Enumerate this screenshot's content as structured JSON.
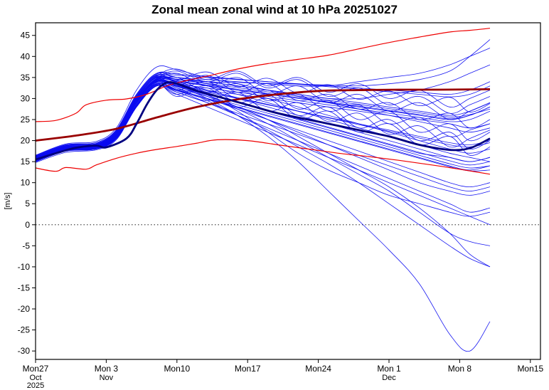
{
  "title": "Zonal mean zonal wind at 10 hPa 20251027",
  "chart_data": {
    "type": "line",
    "title": "Zonal mean zonal wind at 10 hPa 20251027",
    "xlabel": "",
    "ylabel": "[m/s]",
    "ylim": [
      -32,
      48
    ],
    "yticks": [
      -30,
      -25,
      -20,
      -15,
      -10,
      -5,
      0,
      5,
      10,
      15,
      20,
      25,
      30,
      35,
      40,
      45
    ],
    "zero_line": 0,
    "grid": false,
    "legend": "none",
    "x_axis": {
      "unit": "days since 2025-10-27",
      "range": [
        0,
        50
      ],
      "ticks": [
        {
          "day": 0,
          "label": "Mon27",
          "sub": [
            "Oct",
            "2025"
          ]
        },
        {
          "day": 7,
          "label": "Mon 3",
          "sub": [
            "Nov"
          ]
        },
        {
          "day": 14,
          "label": "Mon10",
          "sub": []
        },
        {
          "day": 21,
          "label": "Mon17",
          "sub": []
        },
        {
          "day": 28,
          "label": "Mon24",
          "sub": []
        },
        {
          "day": 35,
          "label": "Mon 1",
          "sub": [
            "Dec"
          ]
        },
        {
          "day": 42,
          "label": "Mon 8",
          "sub": []
        },
        {
          "day": 49,
          "label": "Mon15",
          "sub": []
        }
      ]
    },
    "colors": {
      "member": "#0b0bf0",
      "ensemble_mean": "#000080",
      "climatology_mean": "#990000",
      "climatology_bounds": "#ee0000",
      "axis": "#000000"
    },
    "ensemble_mean": {
      "name": "ensemble mean",
      "days": [
        0,
        2,
        4,
        6,
        7,
        9,
        10,
        11,
        12,
        13,
        14,
        16,
        18,
        21,
        24,
        28,
        32,
        35,
        38,
        41,
        43,
        45
      ],
      "values": [
        15.5,
        17,
        18.3,
        18.8,
        18.4,
        20.5,
        24,
        28.5,
        32,
        33.8,
        33.5,
        31.8,
        30.5,
        28.5,
        26.5,
        24.5,
        22.5,
        21,
        19,
        17.8,
        18.2,
        20.5
      ]
    },
    "climatology_mean": {
      "name": "climatological mean",
      "days": [
        0,
        4,
        8,
        12,
        16,
        20,
        24,
        28,
        32,
        36,
        40,
        45
      ],
      "values": [
        20,
        21.2,
        22.8,
        25.5,
        28,
        29.8,
        31,
        31.8,
        32,
        32.1,
        32.1,
        32.2
      ]
    },
    "climatology_upper": {
      "name": "climatological upper bound",
      "days": [
        0,
        2,
        4,
        5,
        7,
        9,
        11,
        13,
        15,
        17,
        20,
        23,
        26,
        29,
        32,
        35,
        38,
        41,
        43,
        45
      ],
      "values": [
        24.5,
        24.8,
        26.5,
        28.5,
        29.6,
        29.9,
        31,
        33,
        34.3,
        35.3,
        37,
        38.3,
        39.3,
        40.3,
        41.8,
        43.3,
        44.6,
        45.8,
        46.2,
        46.7
      ]
    },
    "climatology_lower": {
      "name": "climatological lower bound",
      "days": [
        0,
        2,
        3,
        5,
        6,
        8,
        10,
        12,
        14,
        16,
        18,
        21,
        24,
        27,
        30,
        33,
        36,
        39,
        42,
        45
      ],
      "values": [
        13.5,
        12.7,
        13.6,
        13.2,
        14.2,
        15.8,
        17,
        17.9,
        18.6,
        19.4,
        20.2,
        20,
        19,
        18,
        17,
        16.2,
        15.3,
        14.3,
        13.2,
        12
      ]
    },
    "member_days": [
      0,
      3,
      6,
      8,
      10,
      12,
      14,
      17,
      20,
      23,
      26,
      29,
      32,
      35,
      38,
      41,
      43,
      45
    ],
    "ensemble_members": [
      [
        15.5,
        18,
        18.5,
        21,
        29,
        34,
        33,
        31,
        29,
        27,
        25,
        23,
        21,
        19,
        17,
        16,
        15,
        16
      ],
      [
        16,
        18.5,
        19,
        22,
        30,
        35,
        34,
        32,
        31,
        30,
        29,
        28,
        27,
        26,
        25,
        24,
        23,
        24
      ],
      [
        15,
        17.5,
        18,
        20.5,
        28,
        33,
        32,
        30,
        28,
        25,
        22,
        19,
        16,
        13,
        10,
        8,
        7,
        8
      ],
      [
        16.5,
        19,
        19.5,
        22.5,
        31,
        36,
        35,
        34,
        33,
        32,
        31,
        30,
        30,
        31,
        32,
        34,
        36,
        38
      ],
      [
        15.2,
        17.8,
        18.2,
        20.8,
        28.5,
        33.5,
        32,
        29,
        26,
        23,
        20,
        17,
        14,
        11,
        8,
        5,
        3,
        4
      ],
      [
        15.8,
        18.2,
        18.8,
        21.5,
        29.5,
        34.5,
        34,
        33,
        32,
        31,
        30,
        29,
        28,
        27,
        26,
        25,
        26,
        28
      ],
      [
        14.8,
        17.2,
        17.8,
        20.2,
        28,
        33,
        31,
        28,
        25,
        22,
        19,
        16,
        13,
        10,
        7,
        4,
        2,
        0
      ],
      [
        16.2,
        18.8,
        19.2,
        22,
        30.5,
        35.5,
        35,
        34,
        33,
        32,
        31,
        30,
        29,
        28,
        27,
        26,
        27,
        29
      ],
      [
        15.4,
        17.6,
        18.4,
        21,
        29,
        34,
        32.5,
        30.5,
        28.5,
        26.5,
        24.5,
        22.5,
        20.5,
        18.5,
        16.5,
        14.5,
        13.5,
        14
      ],
      [
        15.9,
        18.4,
        18.9,
        21.8,
        30,
        35,
        34.5,
        33.5,
        32,
        30,
        28,
        26,
        24,
        22,
        20,
        18,
        17,
        18
      ],
      [
        15.6,
        18,
        18.6,
        21.2,
        29.2,
        34.2,
        33,
        30,
        26,
        21,
        15,
        8,
        1,
        -6,
        -14,
        -26,
        -30,
        -23
      ],
      [
        15.3,
        17.9,
        18.3,
        20.9,
        28.8,
        33.8,
        32.5,
        29.5,
        26,
        22.5,
        18.5,
        14.5,
        10,
        5,
        0,
        -5,
        -8,
        -10
      ],
      [
        16.1,
        18.6,
        19.1,
        22.2,
        30.2,
        35.2,
        34,
        32,
        30,
        28,
        26,
        24,
        22,
        20,
        18,
        16,
        15,
        16
      ],
      [
        15.7,
        18.1,
        18.7,
        21.4,
        29.4,
        34.4,
        33.5,
        32.5,
        31.5,
        30.5,
        29.5,
        28.5,
        27.5,
        26.5,
        25.5,
        24.5,
        25,
        27
      ],
      [
        15.1,
        17.7,
        18.1,
        20.6,
        28.2,
        33.2,
        31.5,
        29,
        26.5,
        24,
        21.5,
        19,
        16.5,
        14,
        11.5,
        9,
        8,
        9
      ],
      [
        16.3,
        18.9,
        19.3,
        22.4,
        30.8,
        35.8,
        35.5,
        35,
        34.5,
        34,
        33.5,
        33,
        32.5,
        32,
        31.5,
        31,
        32,
        34
      ],
      [
        15.5,
        18,
        18.5,
        21,
        29,
        34,
        33,
        31.5,
        30,
        28.5,
        27,
        25.5,
        24,
        22.5,
        21,
        19.5,
        19,
        20
      ],
      [
        15.8,
        18.3,
        18.8,
        21.6,
        29.6,
        34.6,
        34,
        33,
        31,
        29,
        27,
        25,
        23,
        21,
        19,
        17,
        16,
        15
      ],
      [
        16,
        18.5,
        19,
        22,
        30.4,
        35.4,
        35,
        34.5,
        34,
        33.5,
        33,
        33,
        34,
        35,
        36,
        38,
        40,
        42
      ],
      [
        15.2,
        17.8,
        18.2,
        20.8,
        28.4,
        33.4,
        32,
        30,
        27.5,
        25,
        22.5,
        20,
        17.5,
        15,
        12.5,
        10,
        9,
        10
      ],
      [
        15.6,
        18.1,
        18.6,
        21.3,
        29.3,
        34.3,
        33.2,
        31.2,
        29.2,
        27.2,
        25.2,
        23.2,
        21.2,
        19.2,
        17.2,
        15.2,
        14.2,
        15
      ],
      [
        15.4,
        17.9,
        18.4,
        21,
        29,
        34,
        32.8,
        30.8,
        28,
        25,
        21,
        17,
        13,
        9,
        4,
        -2,
        -7,
        -10
      ],
      [
        16.4,
        19,
        19.5,
        22.6,
        31,
        36,
        35.8,
        35.2,
        34.6,
        34,
        33.4,
        32.8,
        32.2,
        31.6,
        31,
        30.4,
        31,
        33
      ],
      [
        15,
        17.6,
        18,
        20.4,
        28,
        33,
        31.8,
        29.8,
        27.8,
        25.8,
        23.8,
        21.8,
        19.8,
        17.8,
        15.8,
        13.8,
        12.8,
        13
      ],
      [
        15.9,
        18.4,
        18.9,
        21.7,
        29.7,
        34.7,
        34.2,
        33.2,
        32.2,
        31.2,
        30.2,
        29.2,
        28.2,
        27.2,
        26.2,
        25.2,
        26,
        28
      ],
      [
        15.5,
        18,
        18.5,
        21.1,
        29.1,
        34.1,
        32.9,
        30.5,
        27.5,
        24,
        20,
        16,
        12,
        8,
        3,
        -2,
        -4,
        -5
      ],
      [
        16.2,
        18.7,
        19.2,
        22.1,
        30.1,
        35.1,
        34.6,
        33.6,
        32.6,
        31.6,
        30.6,
        29.6,
        28.6,
        27.6,
        26.6,
        25.6,
        26.2,
        27.5
      ],
      [
        15.3,
        17.8,
        18.3,
        20.7,
        28.6,
        33.6,
        32.2,
        30,
        28,
        26,
        24,
        22,
        20,
        18,
        16,
        14,
        13,
        14
      ],
      [
        15.7,
        18.2,
        18.7,
        21.5,
        29.8,
        34.8,
        34.5,
        34,
        33.8,
        33.6,
        33.4,
        33.2,
        33,
        33.5,
        34.5,
        36.5,
        40,
        44
      ],
      [
        15.6,
        18,
        18.5,
        21.2,
        29.2,
        34.2,
        33.4,
        31.8,
        30.2,
        28.6,
        27,
        25.4,
        23.8,
        22.2,
        20.6,
        19,
        18.5,
        19.5
      ],
      [
        15.4,
        17.7,
        18.2,
        20.9,
        28.9,
        33.9,
        35,
        31.5,
        33.5,
        29.5,
        31,
        27,
        28.5,
        24,
        25.5,
        21,
        22.5,
        24
      ],
      [
        16,
        18.4,
        18.9,
        21.9,
        30,
        35,
        33,
        35.5,
        31.5,
        33.5,
        29.5,
        31,
        27.5,
        29,
        25,
        26.5,
        23,
        25
      ],
      [
        15.5,
        18,
        18.4,
        21,
        29,
        34,
        32,
        34,
        30,
        32,
        27.5,
        29.5,
        25,
        27,
        22,
        24,
        20,
        22
      ],
      [
        15.8,
        18.2,
        18.6,
        21.4,
        29.4,
        34.4,
        36,
        33,
        35,
        31,
        33,
        29,
        31,
        27,
        29,
        25,
        27,
        29
      ],
      [
        15.2,
        17.6,
        18.1,
        20.6,
        28.3,
        33.3,
        31,
        33,
        29,
        31,
        26,
        28,
        23,
        25,
        20,
        22,
        18,
        20
      ],
      [
        16.1,
        18.6,
        19,
        22,
        30.3,
        35.3,
        37,
        34.5,
        36.5,
        33,
        35,
        31.5,
        33.5,
        30,
        32,
        28,
        30,
        32
      ],
      [
        15.3,
        17.7,
        18.2,
        20.7,
        28.5,
        33.5,
        30.5,
        32.5,
        28,
        30,
        25,
        27,
        22,
        24,
        19,
        21,
        16.5,
        18.5
      ],
      [
        15.9,
        18.3,
        18.8,
        21.6,
        29.8,
        34.8,
        36.5,
        34,
        36,
        32.5,
        34.5,
        30.5,
        32.5,
        28.5,
        30.5,
        26.5,
        28.5,
        30.5
      ],
      [
        15,
        17.5,
        18,
        20.5,
        28.1,
        33.1,
        31.5,
        29.5,
        31.5,
        27,
        29,
        24.5,
        26.5,
        21.5,
        23.5,
        18.5,
        20.5,
        22.5
      ],
      [
        16.2,
        18.8,
        19.3,
        22.2,
        30.6,
        35.6,
        34.3,
        36.3,
        32.8,
        34.8,
        31.3,
        33.3,
        29.8,
        31.8,
        28.3,
        30.3,
        26.8,
        28.8
      ],
      [
        16.5,
        19.2,
        19.8,
        23,
        32,
        37.5,
        36.8,
        35,
        33.5,
        32,
        30.5,
        29,
        27.5,
        26,
        24.5,
        23,
        22,
        23
      ],
      [
        15.7,
        18.1,
        18.6,
        21.3,
        29.5,
        34.5,
        33.8,
        31,
        27,
        22,
        17,
        13,
        10,
        7,
        5,
        3,
        2,
        3
      ]
    ]
  }
}
